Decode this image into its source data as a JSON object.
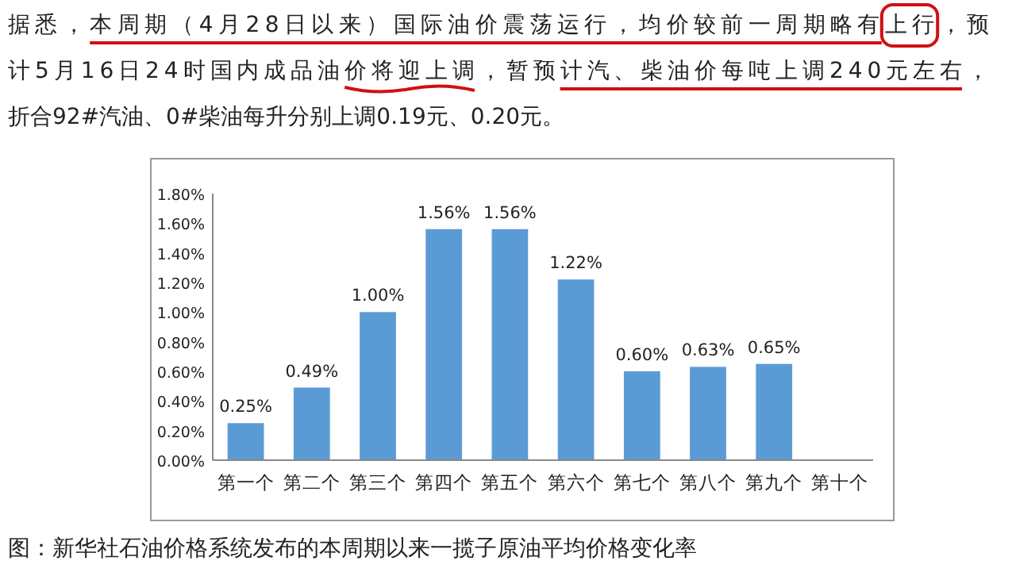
{
  "chart_data": {
    "type": "bar",
    "annotations": [
      "据悉，本周期（4月28日以来）国际油价震荡运行，均价较前一周期略有上行，预",
      "计5月16日24时国内成品油价将迎上调，暂预计汽、柴油价每吨上调240元左右，",
      "折合92#汽油、0#柴油每升分别上调0.19元、0.20元。",
      "图：新华社石油价格系统发布的本周期以来一揽子原油平均价格变化率"
    ],
    "categories": [
      "第一个",
      "第二个",
      "第三个",
      "第四个",
      "第五个",
      "第六个",
      "第七个",
      "第八个",
      "第九个",
      "第十个"
    ],
    "values": [
      0.25,
      0.49,
      1.0,
      1.56,
      1.56,
      1.22,
      0.6,
      0.63,
      0.65,
      null
    ],
    "value_labels": [
      "0.25%",
      "0.49%",
      "1.00%",
      "1.56%",
      "1.56%",
      "1.22%",
      "0.60%",
      "0.63%",
      "0.65%",
      null
    ],
    "color": "#5b9bd5",
    "ylim": [
      0,
      1.8
    ],
    "yticks": [
      {
        "value": 0,
        "label": "0.00%"
      },
      {
        "value": 0.2,
        "label": "0.20%"
      },
      {
        "value": 0.4,
        "label": "0.40%"
      },
      {
        "value": 0.6,
        "label": "0.60%"
      },
      {
        "value": 0.8,
        "label": "0.80%"
      },
      {
        "value": 1.0,
        "label": "1.00%"
      },
      {
        "value": 1.2,
        "label": "1.20%"
      },
      {
        "value": 1.4,
        "label": "1.40%"
      },
      {
        "value": 1.6,
        "label": "1.60%"
      },
      {
        "value": 1.8,
        "label": "1.80%"
      }
    ],
    "grid": false
  }
}
